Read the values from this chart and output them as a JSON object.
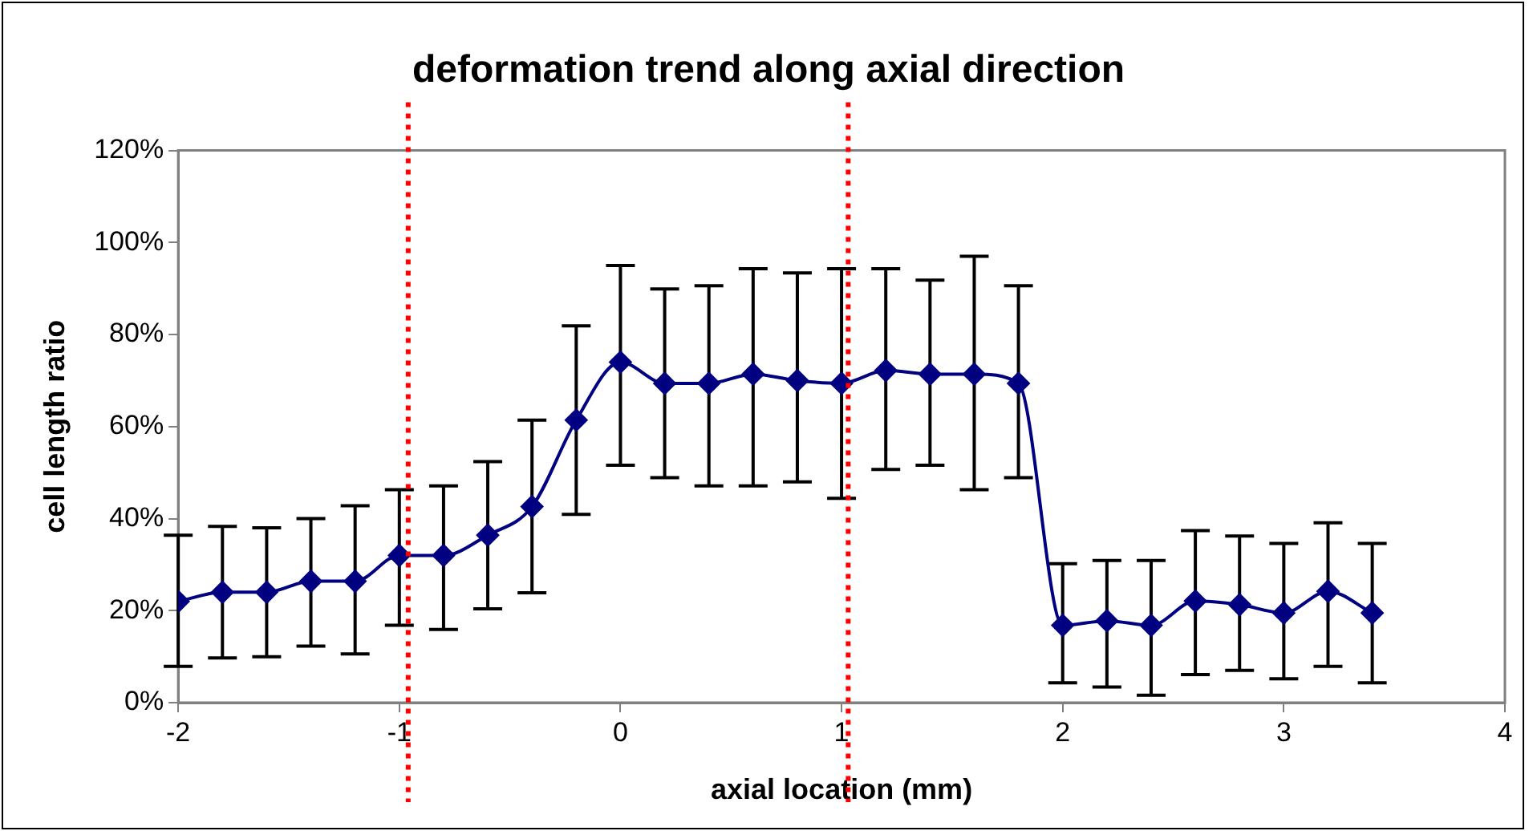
{
  "chart_data": {
    "type": "line",
    "title": "deformation trend along axial direction",
    "xlabel": "axial location (mm)",
    "ylabel": "cell length ratio",
    "x": [
      -2,
      -1.8,
      -1.6,
      -1.4,
      -1.2,
      -1,
      -0.8,
      -0.6,
      -0.4,
      -0.2,
      0,
      0.2,
      0.4,
      0.6,
      0.8,
      1,
      1.2,
      1.4,
      1.6,
      1.8,
      2,
      2.2,
      2.4,
      2.6,
      2.8,
      3,
      3.2,
      3.4
    ],
    "series": [
      {
        "color": "#000080",
        "values": [
          22,
          24,
          24,
          26.4,
          26.4,
          32,
          32,
          36.4,
          42.6,
          61.4,
          74,
          69.4,
          69.4,
          71.4,
          70,
          69.4,
          72.2,
          71.4,
          71.4,
          69.4,
          16.8,
          17.8,
          16.8,
          22.1,
          21.3,
          19.5,
          24.2,
          19.5
        ],
        "errors": [
          [
            7.9,
            36.4
          ],
          [
            9.7,
            38.3
          ],
          [
            10,
            38
          ],
          [
            12.3,
            40
          ],
          [
            10.6,
            42.8
          ],
          [
            16.8,
            46.3
          ],
          [
            15.9,
            47.1
          ],
          [
            20.4,
            52.4
          ],
          [
            23.9,
            61.4
          ],
          [
            40.9,
            81.9
          ],
          [
            51.6,
            95
          ],
          [
            48.9,
            89.9
          ],
          [
            47.1,
            90.6
          ],
          [
            47.1,
            94.3
          ],
          [
            48,
            93.4
          ],
          [
            44.4,
            94.3
          ],
          [
            50.7,
            94.3
          ],
          [
            51.6,
            91.8
          ],
          [
            46.3,
            97
          ],
          [
            48.9,
            90.6
          ],
          [
            4.3,
            30.2
          ],
          [
            3.4,
            30.9
          ],
          [
            1.6,
            30.9
          ],
          [
            6.1,
            37.4
          ],
          [
            7,
            36.2
          ],
          [
            5.2,
            34.6
          ],
          [
            7.9,
            39.1
          ],
          [
            4.3,
            34.6
          ]
        ]
      }
    ],
    "xlim": [
      -2,
      4
    ],
    "xticks": [
      -2,
      -1,
      0,
      1,
      2,
      3,
      4
    ],
    "ylim": [
      0,
      120
    ],
    "yticks": [
      {
        "value": 0,
        "label": "0%"
      },
      {
        "value": 20,
        "label": "20%"
      },
      {
        "value": 40,
        "label": "40%"
      },
      {
        "value": 60,
        "label": "60%"
      },
      {
        "value": 80,
        "label": "80%"
      },
      {
        "value": 100,
        "label": "100%"
      },
      {
        "value": 120,
        "label": "120%"
      }
    ],
    "ref_lines": [
      {
        "axis": "x",
        "value": -0.96,
        "color": "#ff0000",
        "line_style": "dotted"
      },
      {
        "axis": "x",
        "value": 1.03,
        "color": "#ff0000",
        "line_style": "dotted"
      }
    ],
    "marker": "diamond",
    "line_style": "solid",
    "grid": false,
    "legend": false
  }
}
